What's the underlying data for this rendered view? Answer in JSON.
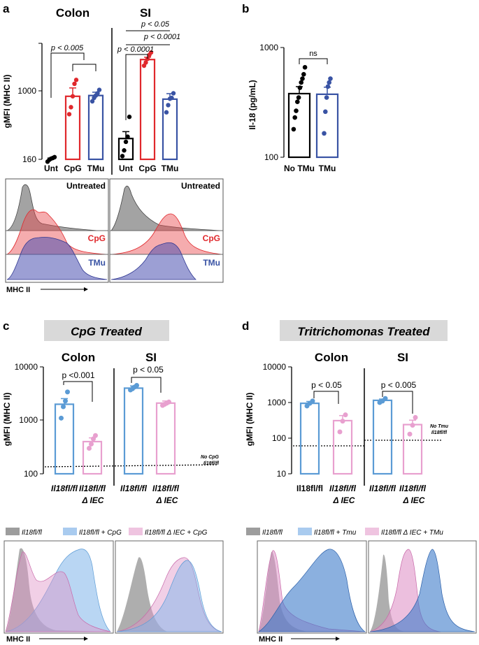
{
  "colors": {
    "black": "#000000",
    "red": "#e0282c",
    "blue": "#3953a4",
    "lightblue": "#5b9bd5",
    "pink": "#e8a0cf",
    "gray": "#6e6e6e",
    "banner": "#d9d9d9"
  },
  "panels": {
    "a": {
      "letter": "a",
      "colon": "Colon",
      "si": "SI",
      "ylabel": "gMFI (MHC II)",
      "ticks": [
        "160",
        "1000"
      ],
      "xlabels": [
        "Unt",
        "CpG",
        "TMu",
        "Unt",
        "CpG",
        "TMu"
      ],
      "stats": [
        "p < 0.005",
        "p < 0.0001",
        "p < 0.0001",
        "p < 0.05"
      ],
      "hist": {
        "untreated": "Untreated",
        "cpg": "CpG",
        "tmu": "TMu",
        "xlabel": "MHC II"
      }
    },
    "b": {
      "letter": "b",
      "ylabel": "Il-18 (pg/mL)",
      "ticks": [
        "1000",
        "100"
      ],
      "xlabels": [
        "No TMu",
        "TMu"
      ],
      "stat": "ns"
    },
    "c": {
      "letter": "c",
      "banner": "CpG Treated",
      "colon": "Colon",
      "si": "SI",
      "ylabel": "gMFI (MHC II)",
      "ticks": [
        "10000",
        "1000",
        "100"
      ],
      "stats": [
        "p <0.001",
        "p < 0.05"
      ],
      "ref1": "No CpG",
      "ref2": "Il18fl/fl",
      "xl_ctrl": "Il18fl/fl",
      "xl_ko": "Il18fl/fl",
      "xl_ko2": "Δ IEC",
      "legend": [
        "Il18fl/fl",
        "Il18fl/fl + CpG",
        "Il18fl/fl Δ IEC + CpG"
      ],
      "xlabel": "MHC II"
    },
    "d": {
      "letter": "d",
      "banner": "Tritrichomonas Treated",
      "colon": "Colon",
      "si": "SI",
      "ylabel": "gMFI (MHC II)",
      "ticks": [
        "10000",
        "1000",
        "100",
        "10"
      ],
      "stats": [
        "p < 0.05",
        "p < 0.005"
      ],
      "ref1": "No Tmu",
      "ref2": "Il18fl/fl",
      "xl_ctrl": "Il18fl/fl",
      "xl_ko": "Il18fl/fl",
      "xl_ko2": "Δ IEC",
      "legend": [
        "Il18fl/fl",
        "Il18fl/fl + Tmu",
        "Il18fl/fl Δ IEC + TMu"
      ],
      "xlabel": "MHC II"
    }
  },
  "chart_data": [
    {
      "panel": "a",
      "type": "bar",
      "scale": "log",
      "ylim": [
        160,
        4000
      ],
      "ylabel": "gMFI (MHC II)",
      "categories": [
        "Unt",
        "CpG",
        "TMu",
        "Unt",
        "CpG",
        "TMu"
      ],
      "groups": [
        "Colon",
        "Colon",
        "Colon",
        "SI",
        "SI",
        "SI"
      ],
      "values": [
        160,
        920,
        940,
        285,
        2550,
        850
      ],
      "errors": [
        6,
        240,
        90,
        60,
        170,
        140
      ],
      "points": [
        [
          150,
          158,
          163,
          166,
          170
        ],
        [
          560,
          680,
          920,
          1300,
          1450
        ],
        [
          800,
          880,
          940,
          1000,
          1100
        ],
        [
          175,
          205,
          260,
          300,
          520
        ],
        [
          2150,
          2350,
          2600,
          2900,
          3100
        ],
        [
          590,
          720,
          860,
          880,
          1000
        ]
      ]
    },
    {
      "panel": "b",
      "type": "bar",
      "scale": "log",
      "ylim": [
        100,
        1000
      ],
      "ylabel": "Il-18 (pg/mL)",
      "categories": [
        "No TMu",
        "TMu"
      ],
      "values": [
        380,
        375
      ],
      "errors": [
        60,
        60
      ],
      "points": [
        [
          180,
          230,
          265,
          320,
          350,
          430,
          480,
          520,
          570,
          660
        ],
        [
          165,
          260,
          350,
          440,
          480,
          520
        ]
      ]
    },
    {
      "panel": "c",
      "type": "bar",
      "scale": "log",
      "ylim": [
        100,
        10000
      ],
      "ylabel": "gMFI (MHC II)",
      "categories": [
        "Il18fl/fl",
        "Il18fl/fl Δ IEC",
        "Il18fl/fl",
        "Il18fl/fl Δ IEC"
      ],
      "groups": [
        "Colon",
        "Colon",
        "SI",
        "SI"
      ],
      "values": [
        2000,
        400,
        4000,
        2100
      ],
      "errors": [
        550,
        70,
        400,
        200
      ],
      "reference_line": 135,
      "points": [
        [
          1100,
          1800,
          2300,
          3400
        ],
        [
          300,
          360,
          450,
          520
        ],
        [
          3700,
          3900,
          4200,
          4500
        ],
        [
          1900,
          2000,
          2100,
          2200
        ]
      ]
    },
    {
      "panel": "d",
      "type": "bar",
      "scale": "log",
      "ylim": [
        10,
        10000
      ],
      "ylabel": "gMFI (MHC II)",
      "categories": [
        "Il18fl/fl",
        "Il18fl/fl Δ IEC",
        "Il18fl/fl",
        "Il18fl/fl Δ IEC"
      ],
      "groups": [
        "Colon",
        "Colon",
        "SI",
        "SI"
      ],
      "values": [
        950,
        310,
        1150,
        240
      ],
      "errors": [
        120,
        120,
        100,
        80
      ],
      "reference_line": 60,
      "points": [
        [
          800,
          950,
          1100
        ],
        [
          150,
          300,
          450
        ],
        [
          1000,
          1100,
          1300
        ],
        [
          130,
          230,
          380
        ]
      ]
    }
  ]
}
